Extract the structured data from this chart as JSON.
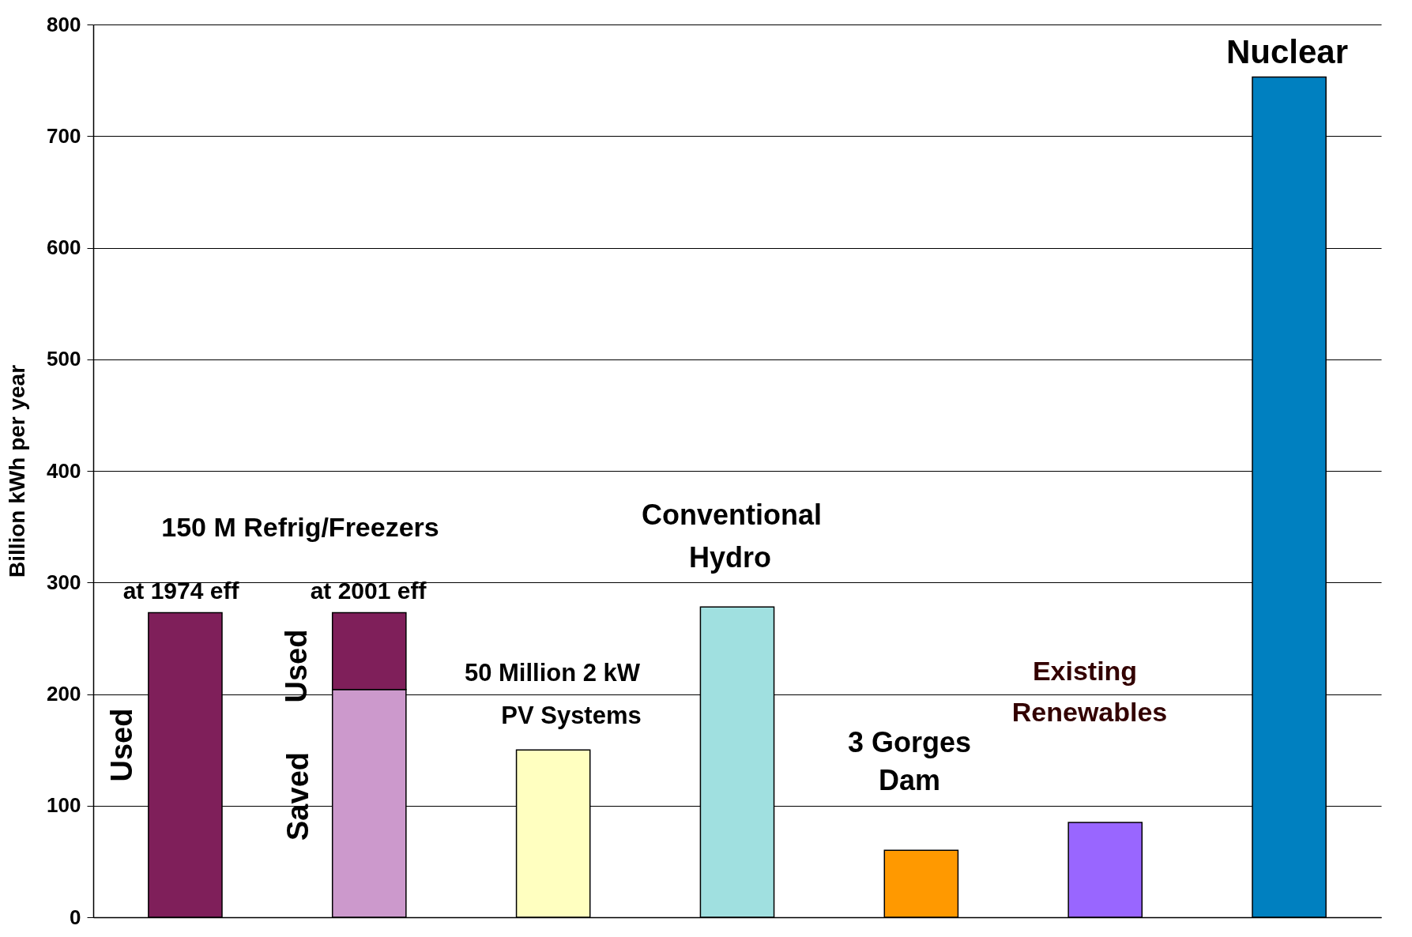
{
  "chart_data": {
    "type": "bar",
    "ylabel": "Billion kWh per year",
    "categories": [
      null,
      null,
      null,
      null,
      null,
      null,
      null
    ],
    "stacked": true,
    "series": [
      {
        "colors": [
          "#7f1f5a",
          "#cc99cc",
          "#ffffc0",
          "#a0e0e0",
          "#ff9900",
          "#9966ff",
          "#0080c0"
        ],
        "values": [
          273,
          204,
          150,
          278,
          60,
          85,
          753
        ]
      },
      {
        "color": "#7f1f5a",
        "values": [
          null,
          69,
          null,
          null,
          null,
          null,
          null
        ]
      }
    ],
    "ylim": [
      0,
      800
    ],
    "yticks": [
      0,
      100,
      200,
      300,
      400,
      500,
      600,
      700,
      800
    ],
    "grid": "y",
    "tick_labels": "y",
    "annotations": [
      "150 M Refrig/Freezers",
      "at 1974 eff",
      "at 2001 eff",
      "Used",
      "Used",
      "Saved",
      "50 Million 2 kW",
      "PV Systems",
      "Conventional",
      "Hydro",
      "3 Gorges",
      "Dam",
      "Existing",
      "Renewables",
      "Nuclear"
    ]
  }
}
